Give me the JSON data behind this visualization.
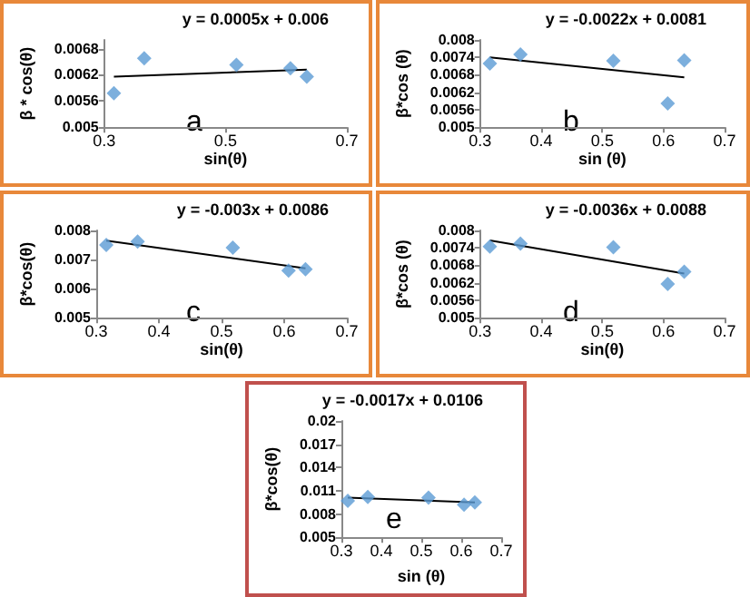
{
  "chart_data": [
    {
      "type": "scatter",
      "xlabel": "sin(θ)",
      "ylabel": "β * cos(θ)",
      "xlim": [
        0.3,
        0.7
      ],
      "xticks": [
        0.3,
        0.5,
        0.7
      ],
      "ylim": [
        0.005,
        0.007
      ],
      "yticks": [
        0.005,
        0.0056,
        0.0062,
        0.0068
      ],
      "annotations": [
        "y = 0.0005x + 0.006",
        "a"
      ],
      "series": [
        {
          "marker": "diamond",
          "color": "#5b9bd5",
          "x": [
            0.316,
            0.366,
            0.518,
            0.607,
            0.634
          ],
          "values": [
            0.00578,
            0.00658,
            0.00643,
            0.00635,
            0.00616
          ]
        },
        {
          "type": "line",
          "marker": "none",
          "color": "#000000",
          "x": [
            0.316,
            0.634
          ],
          "values": [
            0.00616,
            0.00632
          ]
        }
      ]
    },
    {
      "type": "scatter",
      "xlabel": "sin (θ)",
      "ylabel": "β*cos (θ)",
      "xlim": [
        0.3,
        0.7
      ],
      "xticks": [
        0.3,
        0.4,
        0.5,
        0.6,
        0.7
      ],
      "ylim": [
        0.005,
        0.008
      ],
      "yticks": [
        0.005,
        0.0056,
        0.0062,
        0.0068,
        0.0074,
        0.008
      ],
      "annotations": [
        "y = -0.0022x + 0.0081",
        "b"
      ],
      "series": [
        {
          "marker": "diamond",
          "color": "#5b9bd5",
          "x": [
            0.316,
            0.366,
            0.518,
            0.607,
            0.634
          ],
          "values": [
            0.00719,
            0.0075,
            0.00728,
            0.00582,
            0.0073
          ]
        },
        {
          "type": "line",
          "marker": "none",
          "color": "#000000",
          "x": [
            0.316,
            0.634
          ],
          "values": [
            0.0074,
            0.00671
          ]
        }
      ]
    },
    {
      "type": "scatter",
      "xlabel": "sin(θ)",
      "ylabel": "β*cos(θ)",
      "xlim": [
        0.3,
        0.7
      ],
      "xticks": [
        0.3,
        0.4,
        0.5,
        0.6,
        0.7
      ],
      "ylim": [
        0.005,
        0.008
      ],
      "yticks": [
        0.005,
        0.006,
        0.007,
        0.008
      ],
      "annotations": [
        "y = -0.003x + 0.0086",
        "c"
      ],
      "series": [
        {
          "marker": "diamond",
          "color": "#5b9bd5",
          "x": [
            0.316,
            0.366,
            0.518,
            0.607,
            0.634
          ],
          "values": [
            0.0075,
            0.00762,
            0.00741,
            0.00662,
            0.00667
          ]
        },
        {
          "type": "line",
          "marker": "none",
          "color": "#000000",
          "x": [
            0.316,
            0.634
          ],
          "values": [
            0.00765,
            0.0067
          ]
        }
      ]
    },
    {
      "type": "scatter",
      "xlabel": "sin(θ)",
      "ylabel": "β*cos (θ)",
      "xlim": [
        0.3,
        0.7
      ],
      "xticks": [
        0.3,
        0.4,
        0.5,
        0.6,
        0.7
      ],
      "ylim": [
        0.005,
        0.008
      ],
      "yticks": [
        0.005,
        0.0056,
        0.0062,
        0.0068,
        0.0074,
        0.008
      ],
      "annotations": [
        "y = -0.0036x + 0.0088",
        "d"
      ],
      "series": [
        {
          "marker": "diamond",
          "color": "#5b9bd5",
          "x": [
            0.316,
            0.366,
            0.518,
            0.607,
            0.634
          ],
          "values": [
            0.00745,
            0.00755,
            0.00742,
            0.00616,
            0.00658
          ]
        },
        {
          "type": "line",
          "marker": "none",
          "color": "#000000",
          "x": [
            0.316,
            0.634
          ],
          "values": [
            0.00766,
            0.00652
          ]
        }
      ]
    },
    {
      "type": "scatter",
      "xlabel": "sin (θ)",
      "ylabel": "β*cos(θ)",
      "xlim": [
        0.3,
        0.7
      ],
      "xticks": [
        0.3,
        0.4,
        0.5,
        0.6,
        0.7
      ],
      "ylim": [
        0.005,
        0.02
      ],
      "yticks": [
        0.005,
        0.008,
        0.011,
        0.014,
        0.017,
        0.02
      ],
      "annotations": [
        "y = -0.0017x + 0.0106",
        "e"
      ],
      "series": [
        {
          "marker": "diamond",
          "color": "#5b9bd5",
          "x": [
            0.316,
            0.366,
            0.518,
            0.607,
            0.634
          ],
          "values": [
            0.0097,
            0.0102,
            0.0101,
            0.0092,
            0.0095
          ]
        },
        {
          "type": "line",
          "marker": "none",
          "color": "#000000",
          "x": [
            0.316,
            0.634
          ],
          "values": [
            0.0101,
            0.0095
          ]
        }
      ]
    }
  ]
}
